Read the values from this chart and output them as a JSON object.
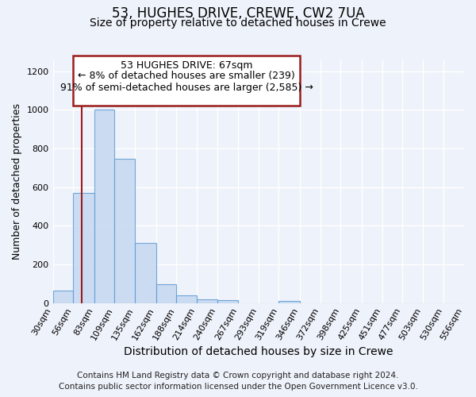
{
  "title1": "53, HUGHES DRIVE, CREWE, CW2 7UA",
  "title2": "Size of property relative to detached houses in Crewe",
  "xlabel": "Distribution of detached houses by size in Crewe",
  "ylabel": "Number of detached properties",
  "bin_edges": [
    30,
    56,
    83,
    109,
    135,
    162,
    188,
    214,
    240,
    267,
    293,
    319,
    346,
    372,
    398,
    425,
    451,
    477,
    503,
    530,
    556
  ],
  "bar_heights": [
    65,
    570,
    1000,
    745,
    310,
    95,
    40,
    20,
    15,
    0,
    0,
    10,
    0,
    0,
    0,
    0,
    0,
    0,
    0,
    0
  ],
  "bar_color": "#c5d8f0",
  "bar_edge_color": "#5b9bd5",
  "bar_alpha": 0.85,
  "property_line_x": 67,
  "property_line_color": "#9b1c1c",
  "annotation_line1": "53 HUGHES DRIVE: 67sqm",
  "annotation_line2": "← 8% of detached houses are smaller (239)",
  "annotation_line3": "91% of semi-detached houses are larger (2,585) →",
  "annotation_box_color": "#9b1c1c",
  "annotation_box_fill": "#ffffff",
  "ylim": [
    0,
    1260
  ],
  "yticks": [
    0,
    200,
    400,
    600,
    800,
    1000,
    1200
  ],
  "footnote1": "Contains HM Land Registry data © Crown copyright and database right 2024.",
  "footnote2": "Contains public sector information licensed under the Open Government Licence v3.0.",
  "background_color": "#eef2fa",
  "grid_color": "#ffffff",
  "title1_fontsize": 12,
  "title2_fontsize": 10,
  "xlabel_fontsize": 10,
  "ylabel_fontsize": 9,
  "tick_fontsize": 8,
  "footnote_fontsize": 7.5
}
